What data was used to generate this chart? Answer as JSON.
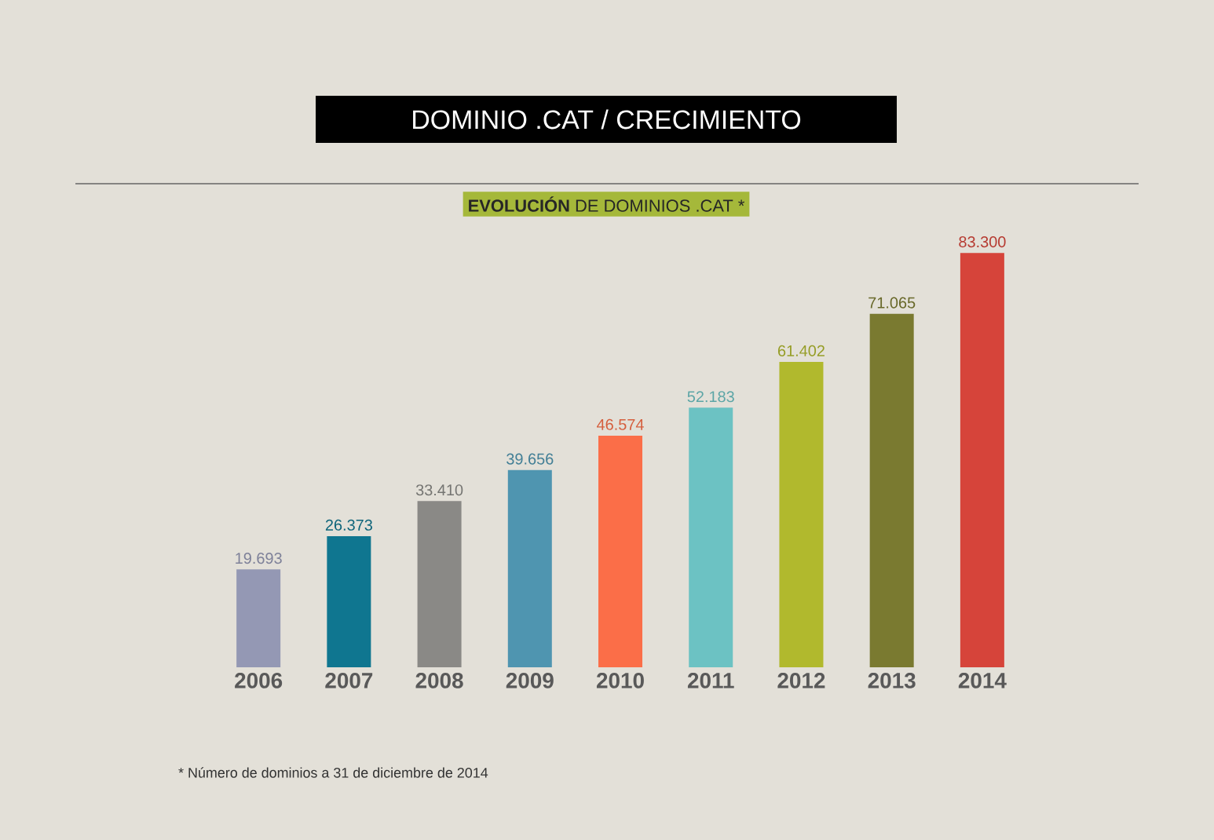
{
  "chart_data": {
    "type": "bar",
    "title": "DOMINIO .CAT / CRECIMIENTO",
    "subtitle": "**EVOLUCIÓN** DE DOMINIOS .CAT *",
    "categories": [
      "2006",
      "2007",
      "2008",
      "2009",
      "2010",
      "2011",
      "2012",
      "2013",
      "2014"
    ],
    "values": [
      19693,
      26373,
      33410,
      39656,
      46574,
      52183,
      61402,
      71065,
      83300
    ],
    "value_labels": [
      "19.693",
      "26.373",
      "33.410",
      "39.656",
      "46.574",
      "52.183",
      "61.402",
      "71.065",
      "83.300"
    ],
    "colors": [
      "#9498b4",
      "#0f7690",
      "#8a8986",
      "#4f95b0",
      "#fb6e48",
      "#6cc2c3",
      "#b1b92d",
      "#7a7a30",
      "#d6443a"
    ],
    "annotations": [
      "* Número de dominios a 31 de diciembre de 2014"
    ],
    "tick_labels": "x"
  }
}
